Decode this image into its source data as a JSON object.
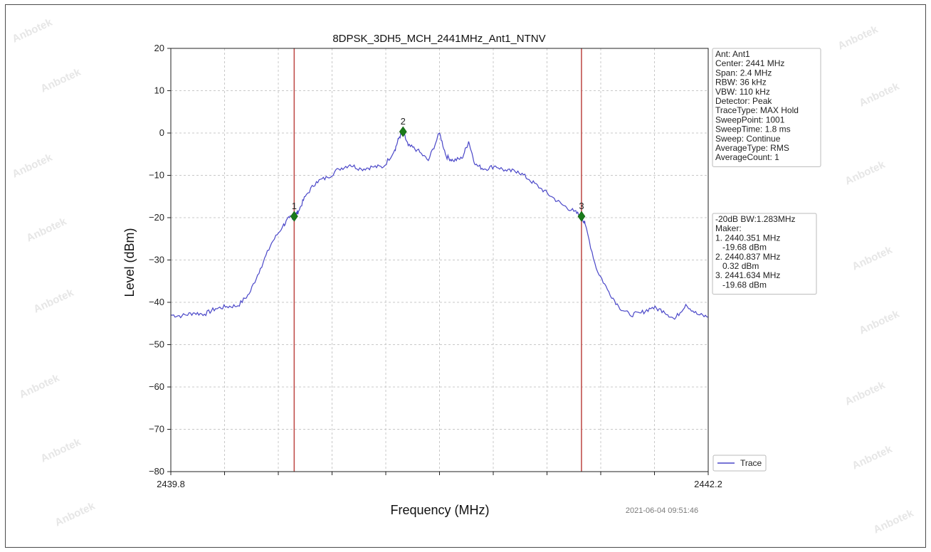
{
  "watermark": "Anbotek",
  "timestamp": "2021-06-04 09:51:46",
  "info_box": [
    "Ant: Ant1",
    "Center: 2441 MHz",
    "Span: 2.4 MHz",
    "RBW: 36 kHz",
    "VBW: 110 kHz",
    "Detector: Peak",
    "TraceType: MAX Hold",
    "SweepPoint: 1001",
    "SweepTime: 1.8 ms",
    "Sweep: Continue",
    "AverageType: RMS",
    "AverageCount: 1"
  ],
  "marker_box": [
    "-20dB BW:1.283MHz",
    "Maker:",
    "1. 2440.351 MHz",
    "   -19.68 dBm",
    "2. 2440.837 MHz",
    "   0.32 dBm",
    "3. 2441.634 MHz",
    "   -19.68 dBm"
  ],
  "chart_data": {
    "type": "line",
    "title": "8DPSK_3DH5_MCH_2441MHz_Ant1_NTNV",
    "xlabel": "Frequency (MHz)",
    "ylabel": "Level (dBm)",
    "xlim": [
      2439.8,
      2442.2
    ],
    "ylim": [
      -80,
      20
    ],
    "x_tick_labels": [
      "2439.8",
      "2442.2"
    ],
    "y_ticks": [
      20,
      10,
      0,
      -10,
      -20,
      -30,
      -40,
      -50,
      -60,
      -70,
      -80
    ],
    "grid": true,
    "legend": {
      "placement": "bottom-right",
      "entries": [
        "Trace"
      ]
    },
    "colors": {
      "trace": "#4a47c8",
      "vline": "#c0504d",
      "marker": "#1a7a1a"
    },
    "series": [
      {
        "name": "Trace",
        "x": [
          2439.8,
          2439.85,
          2439.9,
          2439.95,
          2440.0,
          2440.05,
          2440.1,
          2440.15,
          2440.2,
          2440.25,
          2440.3,
          2440.33,
          2440.351,
          2440.37,
          2440.4,
          2440.45,
          2440.5,
          2440.55,
          2440.6,
          2440.65,
          2440.7,
          2440.75,
          2440.8,
          2440.82,
          2440.837,
          2440.86,
          2440.9,
          2440.95,
          2441.0,
          2441.03,
          2441.06,
          2441.1,
          2441.13,
          2441.16,
          2441.2,
          2441.25,
          2441.3,
          2441.35,
          2441.4,
          2441.45,
          2441.5,
          2441.55,
          2441.6,
          2441.634,
          2441.65,
          2441.7,
          2441.75,
          2441.8,
          2441.85,
          2441.9,
          2441.95,
          2442.0,
          2442.05,
          2442.1,
          2442.15,
          2442.2
        ],
        "y": [
          -43,
          -43.2,
          -42.5,
          -42.8,
          -41.5,
          -41,
          -40.8,
          -38,
          -32,
          -26,
          -22,
          -20,
          -19.68,
          -18.5,
          -15,
          -11.5,
          -10.5,
          -8.5,
          -7.5,
          -8.5,
          -8,
          -8,
          -4,
          -1,
          0.32,
          -3,
          -4,
          -6.5,
          0,
          -5.5,
          -6.5,
          -6,
          -2,
          -7.5,
          -8.5,
          -7.8,
          -9,
          -9,
          -11,
          -13,
          -15,
          -17,
          -18.5,
          -19.68,
          -21.5,
          -32,
          -37,
          -41,
          -43,
          -42.5,
          -41.2,
          -42,
          -44,
          -40.5,
          -42.8,
          -43.5
        ]
      }
    ],
    "vlines": [
      2440.351,
      2441.634
    ],
    "markers": [
      {
        "label": "1",
        "x": 2440.351,
        "y": -19.68
      },
      {
        "label": "2",
        "x": 2440.837,
        "y": 0.32
      },
      {
        "label": "3",
        "x": 2441.634,
        "y": -19.68
      }
    ]
  }
}
